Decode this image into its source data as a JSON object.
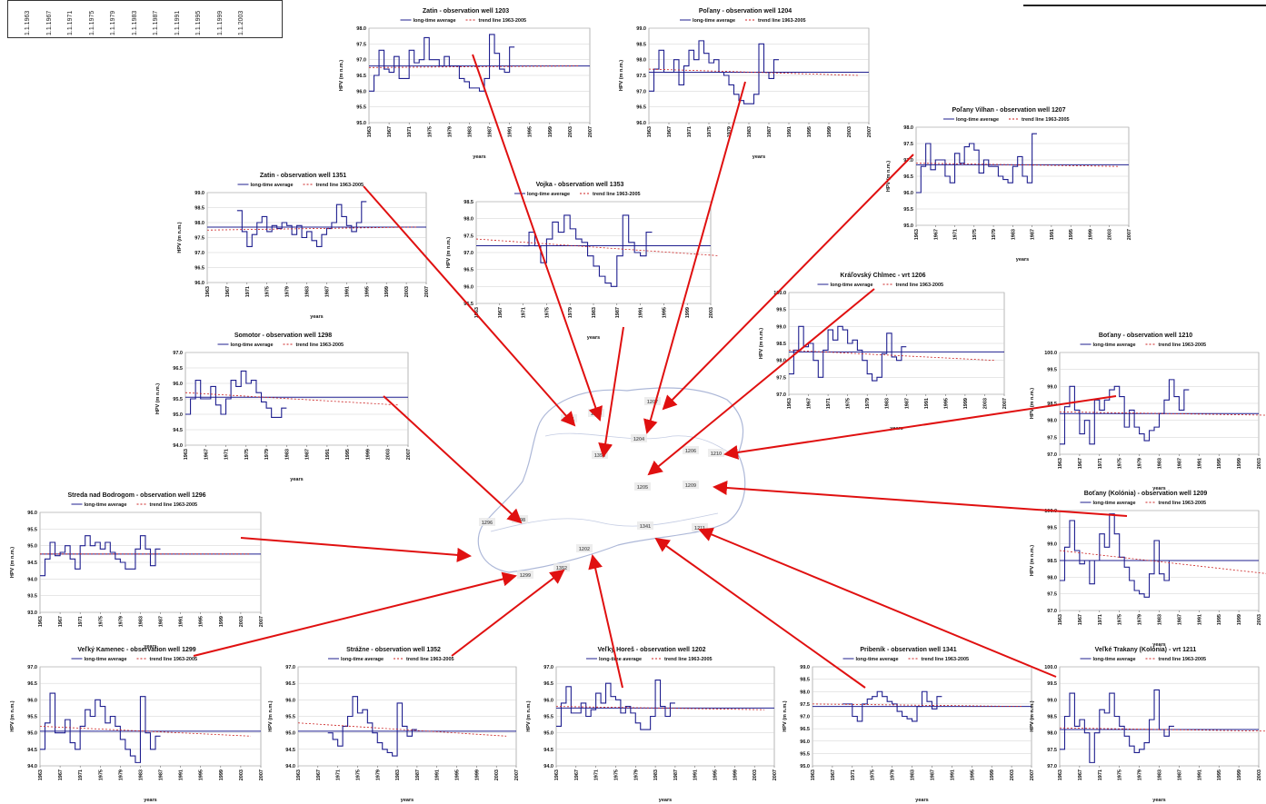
{
  "date_strip": {
    "labels": [
      "1.1.1963",
      "1.1.1967",
      "1.1.1971",
      "1.1.1975",
      "1.1.1979",
      "1.1.1983",
      "1.1.1987",
      "1.1.1991",
      "1.1.1995",
      "1.1.1999",
      "1.1.2003"
    ]
  },
  "legend": {
    "average": "long-time average",
    "trend": "trend line 1963-2005"
  },
  "colors": {
    "series": "#1f1f8f",
    "average": "#1f1f8f",
    "trend": "#cc2222",
    "arrow": "#e01010",
    "map_line": "#8a9ac8"
  },
  "map": {
    "labels": [
      "1351",
      "1203",
      "1353",
      "1207",
      "1204",
      "1206",
      "1210",
      "1205",
      "1209",
      "1298",
      "1296",
      "1299",
      "1352",
      "1202",
      "1341",
      "1211"
    ]
  },
  "chart_data": [
    {
      "type": "line",
      "title": "Zatin - observation well 1203",
      "xlabel": "years",
      "ylabel": "HPV (m n.m.)",
      "ylim": [
        95.0,
        98.0
      ],
      "yticks": [
        95.0,
        95.5,
        96.0,
        96.5,
        97.0,
        97.5,
        98.0
      ],
      "xtick_labels": [
        "1963",
        "1967",
        "1971",
        "1975",
        "1979",
        "1983",
        "1987",
        "1991",
        "1995",
        "1999",
        "2003",
        "2007"
      ],
      "series": [
        {
          "x_start": 1963,
          "values": [
            96.0,
            96.5,
            97.3,
            96.7,
            96.6,
            97.1,
            96.4,
            96.4,
            97.3,
            96.9,
            97.0,
            97.7,
            97.0,
            97.0,
            96.8,
            97.1,
            96.8,
            96.8,
            96.4,
            96.3,
            96.1,
            96.1,
            96.0,
            96.4,
            97.8,
            97.2,
            96.7,
            96.6,
            97.4
          ]
        }
      ],
      "average": 96.8,
      "trend": [
        96.75,
        96.8
      ]
    },
    {
      "type": "line",
      "title": "Poľany - observation well 1204",
      "xlabel": "years",
      "ylabel": "HPV (m n.m.)",
      "ylim": [
        96.0,
        99.0
      ],
      "yticks": [
        96.0,
        96.5,
        97.0,
        97.5,
        98.0,
        98.5,
        99.0
      ],
      "xtick_labels": [
        "1963",
        "1967",
        "1971",
        "1975",
        "1979",
        "1983",
        "1987",
        "1991",
        "1995",
        "1999",
        "2003",
        "2007"
      ],
      "series": [
        {
          "x_start": 1963,
          "values": [
            97.0,
            97.7,
            98.3,
            97.6,
            97.6,
            98.0,
            97.2,
            97.8,
            98.3,
            98.0,
            98.6,
            98.2,
            97.9,
            98.0,
            97.6,
            97.5,
            97.2,
            96.9,
            96.7,
            96.6,
            96.6,
            96.9,
            98.5,
            97.6,
            97.4,
            98.0
          ]
        }
      ],
      "average": 97.6,
      "trend": [
        97.7,
        97.5
      ]
    },
    {
      "type": "line",
      "title": "Poľany Vilhan - observation well 1207",
      "xlabel": "years",
      "ylabel": "HPV (m n.m.)",
      "ylim": [
        95.0,
        98.0
      ],
      "yticks": [
        95.0,
        95.5,
        96.0,
        96.5,
        97.0,
        97.5,
        98.0
      ],
      "xtick_labels": [
        "1963",
        "1967",
        "1971",
        "1975",
        "1979",
        "1983",
        "1987",
        "1991",
        "1995",
        "1999",
        "2003",
        "2007"
      ],
      "series": [
        {
          "x_start": 1963,
          "values": [
            96.0,
            96.8,
            97.5,
            96.7,
            97.0,
            97.0,
            96.5,
            96.3,
            97.2,
            96.9,
            97.4,
            97.5,
            97.3,
            96.6,
            97.0,
            96.8,
            96.8,
            96.5,
            96.4,
            96.3,
            96.8,
            97.1,
            96.5,
            96.3,
            97.8
          ]
        }
      ],
      "average": 96.85,
      "trend": [
        96.9,
        96.8
      ]
    },
    {
      "type": "line",
      "title": "Zatin - observation well 1351",
      "xlabel": "years",
      "ylabel": "HPV (m n.m.)",
      "ylim": [
        96.0,
        99.0
      ],
      "yticks": [
        96.0,
        96.5,
        97.0,
        97.5,
        98.0,
        98.5,
        99.0
      ],
      "xtick_labels": [
        "1963",
        "1967",
        "1971",
        "1975",
        "1979",
        "1983",
        "1987",
        "1991",
        "1995",
        "1999",
        "2003",
        "2007"
      ],
      "series": [
        {
          "x_start": 1969,
          "values": [
            98.4,
            97.7,
            97.2,
            97.6,
            98.0,
            98.2,
            97.7,
            97.9,
            97.8,
            98.0,
            97.9,
            97.6,
            97.9,
            97.5,
            97.7,
            97.4,
            97.2,
            97.6,
            97.8,
            98.0,
            98.6,
            98.2,
            97.9,
            97.7,
            98.0,
            98.7
          ]
        }
      ],
      "average": 97.85,
      "trend": [
        97.75,
        97.85
      ]
    },
    {
      "type": "line",
      "title": "Vojka - observation well 1353",
      "xlabel": "years",
      "ylabel": "HPV (m n.m.)",
      "ylim": [
        95.5,
        98.5
      ],
      "yticks": [
        95.5,
        96.0,
        96.5,
        97.0,
        97.5,
        98.0,
        98.5
      ],
      "xtick_labels": [
        "1963",
        "1967",
        "1971",
        "1975",
        "1979",
        "1983",
        "1987",
        "1991",
        "1995",
        "1999",
        "2003"
      ],
      "series": [
        {
          "x_start": 1971,
          "values": [
            97.2,
            97.6,
            97.2,
            96.7,
            97.4,
            97.9,
            97.6,
            98.1,
            97.7,
            97.4,
            97.3,
            96.9,
            96.6,
            96.3,
            96.1,
            96.0,
            96.9,
            98.1,
            97.3,
            97.0,
            96.9,
            97.6
          ]
        }
      ],
      "average": 97.2,
      "trend": [
        97.4,
        96.9
      ]
    },
    {
      "type": "line",
      "title": "Kráľovský Chlmec - vrt 1206",
      "xlabel": "years",
      "ylabel": "HPV (m n.m.)",
      "ylim": [
        97.0,
        100.0
      ],
      "yticks": [
        97.0,
        97.5,
        98.0,
        98.5,
        99.0,
        99.5,
        100.0
      ],
      "xtick_labels": [
        "1963",
        "1967",
        "1971",
        "1975",
        "1979",
        "1983",
        "1987",
        "1991",
        "1995",
        "1999",
        "2003",
        "2007"
      ],
      "series": [
        {
          "x_start": 1963,
          "values": [
            97.6,
            98.3,
            99.0,
            98.4,
            98.5,
            98.0,
            97.5,
            98.3,
            98.9,
            98.6,
            99.0,
            98.9,
            98.5,
            98.6,
            98.3,
            98.0,
            97.6,
            97.4,
            97.5,
            98.2,
            98.8,
            98.1,
            98.0,
            98.4
          ]
        }
      ],
      "average": 98.25,
      "trend": [
        98.3,
        98.0
      ]
    },
    {
      "type": "line",
      "title": "Boťany - observation well 1210",
      "xlabel": "years",
      "ylabel": "HPV (m n.m.)",
      "ylim": [
        97.0,
        100.0
      ],
      "yticks": [
        97.0,
        97.5,
        98.0,
        98.5,
        99.0,
        99.5,
        100.0
      ],
      "xtick_labels": [
        "1963",
        "1967",
        "1971",
        "1975",
        "1979",
        "1983",
        "1987",
        "1991",
        "1995",
        "1999",
        "2003"
      ],
      "series": [
        {
          "x_start": 1963,
          "values": [
            97.3,
            98.4,
            99.0,
            98.3,
            97.6,
            98.0,
            97.3,
            98.6,
            98.3,
            98.6,
            98.9,
            99.0,
            98.7,
            97.8,
            98.3,
            97.8,
            97.6,
            97.4,
            97.7,
            97.8,
            98.2,
            98.6,
            99.2,
            98.7,
            98.3,
            98.9
          ]
        }
      ],
      "average": 98.2,
      "trend": [
        98.25,
        98.15
      ]
    },
    {
      "type": "line",
      "title": "Somotor - observation well 1298",
      "xlabel": "years",
      "ylabel": "HPV (m n.m.)",
      "ylim": [
        94.0,
        97.0
      ],
      "yticks": [
        94.0,
        94.5,
        95.0,
        95.5,
        96.0,
        96.5,
        97.0
      ],
      "xtick_labels": [
        "1963",
        "1967",
        "1971",
        "1975",
        "1979",
        "1983",
        "1987",
        "1991",
        "1995",
        "1999",
        "2003",
        "2007"
      ],
      "series": [
        {
          "x_start": 1963,
          "values": [
            95.0,
            95.5,
            96.1,
            95.5,
            95.5,
            95.9,
            95.3,
            95.0,
            95.5,
            96.1,
            95.9,
            96.4,
            96.0,
            96.1,
            95.7,
            95.4,
            95.2,
            94.9,
            94.9,
            95.2
          ]
        }
      ],
      "average": 95.55,
      "trend": [
        95.7,
        95.3
      ]
    },
    {
      "type": "line",
      "title": "Streda nad Bodrogom - observation well 1296",
      "xlabel": "years",
      "ylabel": "HPV (m n.m.)",
      "ylim": [
        93.0,
        96.0
      ],
      "yticks": [
        93.0,
        93.5,
        94.0,
        94.5,
        95.0,
        95.5,
        96.0
      ],
      "xtick_labels": [
        "1963",
        "1967",
        "1971",
        "1975",
        "1979",
        "1983",
        "1987",
        "1991",
        "1995",
        "1999",
        "2003",
        "2007"
      ],
      "series": [
        {
          "x_start": 1963,
          "values": [
            94.1,
            94.6,
            95.1,
            94.7,
            94.8,
            95.0,
            94.6,
            94.3,
            95.0,
            95.3,
            95.0,
            95.1,
            94.9,
            95.1,
            94.8,
            94.6,
            94.5,
            94.3,
            94.3,
            94.9,
            95.3,
            94.9,
            94.4,
            94.9
          ]
        }
      ],
      "average": 94.75,
      "trend": [
        94.75,
        94.75
      ]
    },
    {
      "type": "line",
      "title": "Boťany (Kolónia) - observation well 1209",
      "xlabel": "years",
      "ylabel": "HPV (m n.m.)",
      "ylim": [
        97.0,
        100.0
      ],
      "yticks": [
        97.0,
        97.5,
        98.0,
        98.5,
        99.0,
        99.5,
        100.0
      ],
      "xtick_labels": [
        "1963",
        "1967",
        "1971",
        "1975",
        "1979",
        "1983",
        "1987",
        "1991",
        "1995",
        "1999",
        "2003"
      ],
      "series": [
        {
          "x_start": 1963,
          "values": [
            97.9,
            98.9,
            99.7,
            98.8,
            98.4,
            98.5,
            97.8,
            98.5,
            99.3,
            98.9,
            99.9,
            99.3,
            98.6,
            98.3,
            97.9,
            97.6,
            97.5,
            97.4,
            98.1,
            99.1,
            98.1,
            97.9,
            98.5
          ]
        }
      ],
      "average": 98.5,
      "trend": [
        98.8,
        98.1
      ]
    },
    {
      "type": "line",
      "title": "Veľký Kamenec - observation well 1299",
      "xlabel": "years",
      "ylabel": "HPV (m n.m.)",
      "ylim": [
        94.0,
        97.0
      ],
      "yticks": [
        94.0,
        94.5,
        95.0,
        95.5,
        96.0,
        96.5,
        97.0
      ],
      "xtick_labels": [
        "1963",
        "1967",
        "1971",
        "1975",
        "1979",
        "1983",
        "1987",
        "1991",
        "1995",
        "1999",
        "2003",
        "2007"
      ],
      "series": [
        {
          "x_start": 1963,
          "values": [
            94.5,
            95.3,
            96.2,
            95.0,
            95.0,
            95.4,
            94.7,
            94.5,
            95.2,
            95.7,
            95.5,
            96.0,
            95.8,
            95.3,
            95.5,
            95.2,
            94.8,
            94.5,
            94.3,
            94.1,
            96.1,
            95.0,
            94.5,
            94.9
          ]
        }
      ],
      "average": 95.05,
      "trend": [
        95.2,
        94.9
      ]
    },
    {
      "type": "line",
      "title": "Strážne - observation well 1352",
      "xlabel": "years",
      "ylabel": "HPV (m n.m.)",
      "ylim": [
        94.0,
        97.0
      ],
      "yticks": [
        94.0,
        94.5,
        95.0,
        95.5,
        96.0,
        96.5,
        97.0
      ],
      "xtick_labels": [
        "1963",
        "1967",
        "1971",
        "1975",
        "1979",
        "1983",
        "1987",
        "1991",
        "1995",
        "1999",
        "2003",
        "2007"
      ],
      "series": [
        {
          "x_start": 1969,
          "values": [
            95.0,
            94.8,
            94.6,
            95.2,
            95.5,
            96.1,
            95.6,
            95.7,
            95.3,
            95.0,
            94.7,
            94.5,
            94.4,
            94.3,
            95.9,
            95.2,
            94.9,
            95.1
          ]
        }
      ],
      "average": 95.05,
      "trend": [
        95.3,
        94.9
      ]
    },
    {
      "type": "line",
      "title": "Veľký Horeš - observation well 1202",
      "xlabel": "years",
      "ylabel": "HPV (m n.m.)",
      "ylim": [
        94.0,
        97.0
      ],
      "yticks": [
        94.0,
        94.5,
        95.0,
        95.5,
        96.0,
        96.5,
        97.0
      ],
      "xtick_labels": [
        "1963",
        "1967",
        "1971",
        "1975",
        "1979",
        "1983",
        "1987",
        "1991",
        "1995",
        "1999",
        "2003",
        "2007"
      ],
      "series": [
        {
          "x_start": 1963,
          "values": [
            95.2,
            95.9,
            96.4,
            95.6,
            95.6,
            95.9,
            95.5,
            95.7,
            96.2,
            95.9,
            96.5,
            96.1,
            96.0,
            95.6,
            95.8,
            95.6,
            95.3,
            95.1,
            95.1,
            95.5,
            96.6,
            95.8,
            95.5,
            95.9
          ]
        }
      ],
      "average": 95.75,
      "trend": [
        95.8,
        95.7
      ]
    },
    {
      "type": "line",
      "title": "Pribeník - observation well 1341",
      "xlabel": "years",
      "ylabel": "HPV (m n.m.)",
      "ylim": [
        95.0,
        99.0
      ],
      "yticks": [
        95.0,
        95.5,
        96.0,
        96.5,
        97.0,
        97.5,
        98.0,
        98.5,
        99.0
      ],
      "xtick_labels": [
        "1963",
        "1967",
        "1971",
        "1975",
        "1979",
        "1983",
        "1987",
        "1991",
        "1995",
        "1999",
        "2003",
        "2007"
      ],
      "series": [
        {
          "x_start": 1969,
          "values": [
            97.5,
            97.5,
            97.0,
            96.8,
            97.5,
            97.7,
            97.8,
            98.0,
            97.8,
            97.6,
            97.5,
            97.2,
            97.0,
            96.9,
            96.8,
            97.4,
            98.0,
            97.6,
            97.3,
            97.8
          ]
        }
      ],
      "average": 97.4,
      "trend": [
        97.5,
        97.4
      ]
    },
    {
      "type": "line",
      "title": "Veľké Trakany (Kolónia) - vrt 1211",
      "xlabel": "years",
      "ylabel": "HPV (m n.m.)",
      "ylim": [
        97.0,
        100.0
      ],
      "yticks": [
        97.0,
        97.5,
        98.0,
        98.5,
        99.0,
        99.5,
        100.0
      ],
      "xtick_labels": [
        "1963",
        "1967",
        "1971",
        "1975",
        "1979",
        "1983",
        "1987",
        "1991",
        "1995",
        "1999",
        "2003"
      ],
      "series": [
        {
          "x_start": 1963,
          "values": [
            97.5,
            98.5,
            99.2,
            98.2,
            98.4,
            98.0,
            97.1,
            98.0,
            98.7,
            98.6,
            99.2,
            98.5,
            98.2,
            97.9,
            97.6,
            97.4,
            97.5,
            97.7,
            98.4,
            99.3,
            98.1,
            97.9,
            98.2
          ]
        }
      ],
      "average": 98.1,
      "trend": [
        98.15,
        98.05
      ]
    }
  ]
}
